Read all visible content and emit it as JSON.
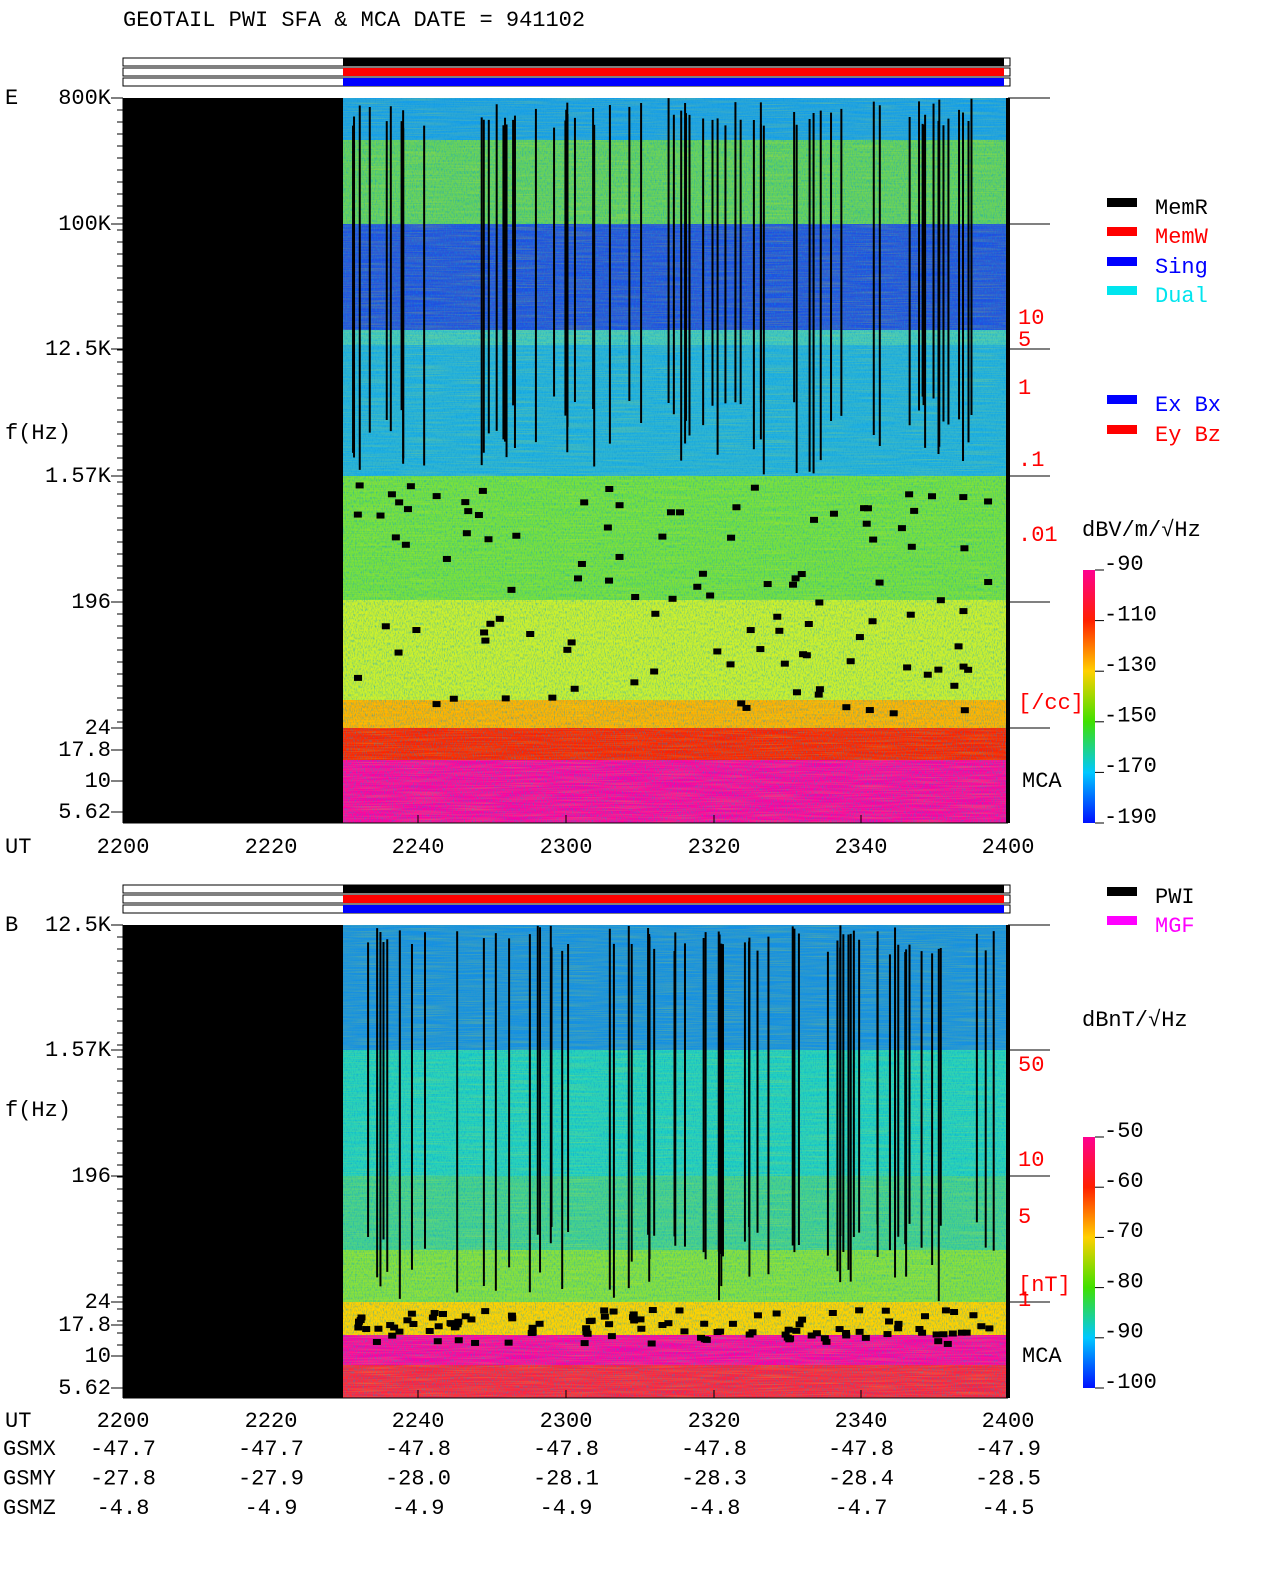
{
  "title": "GEOTAIL  PWI SFA & MCA   DATE = 941102",
  "panels": [
    {
      "label": "E",
      "y_axis_label": "f(Hz)",
      "yticks": [
        "800K",
        "100K",
        "12.5K",
        "1.57K",
        "196",
        "24",
        "17.8",
        "10",
        "5.62"
      ],
      "x_axis_label": "UT",
      "xticks": [
        "2200",
        "2220",
        "2240",
        "2300",
        "2320",
        "2340",
        "2400"
      ],
      "right_labels": [
        "10",
        "5",
        "1",
        ".1",
        ".01",
        "[/cc]"
      ],
      "mca": "MCA",
      "colorbar": {
        "title": "dBV/m/√Hz",
        "ticks": [
          "-90",
          "-110",
          "-130",
          "-150",
          "-170",
          "-190"
        ]
      },
      "legends": [
        {
          "items": [
            {
              "name": "MemR",
              "color": "#000000"
            },
            {
              "name": "MemW",
              "color": "#ff0000"
            },
            {
              "name": "Sing",
              "color": "#0000ff"
            },
            {
              "name": "Dual",
              "color": "#00e5ee"
            }
          ]
        },
        {
          "items": [
            {
              "name": "Ex Bx",
              "color": "#0000ff"
            },
            {
              "name": "Ey Bz",
              "color": "#ff0000"
            }
          ]
        }
      ]
    },
    {
      "label": "B",
      "y_axis_label": "f(Hz)",
      "yticks": [
        "12.5K",
        "1.57K",
        "196",
        "24",
        "17.8",
        "10",
        "5.62"
      ],
      "x_axis_label": "UT",
      "xticks": [
        "2200",
        "2220",
        "2240",
        "2300",
        "2320",
        "2340",
        "2400"
      ],
      "right_labels": [
        "50",
        "10",
        "5",
        "1",
        "[nT]"
      ],
      "mca": "MCA",
      "colorbar": {
        "title": "dBnT/√Hz",
        "ticks": [
          "-50",
          "-60",
          "-70",
          "-80",
          "-90",
          "-100"
        ]
      },
      "legends": [
        {
          "items": [
            {
              "name": "PWI",
              "color": "#000000"
            },
            {
              "name": "MGF",
              "color": "#ff00ff"
            }
          ]
        }
      ]
    }
  ],
  "orbit": [
    {
      "label": "GSMX",
      "values": [
        "-47.7",
        "-47.7",
        "-47.8",
        "-47.8",
        "-47.8",
        "-47.8",
        "-47.9"
      ]
    },
    {
      "label": "GSMY",
      "values": [
        "-27.8",
        "-27.9",
        "-28.0",
        "-28.1",
        "-28.3",
        "-28.4",
        "-28.5"
      ]
    },
    {
      "label": "GSMZ",
      "values": [
        "-4.8",
        "-4.9",
        "-4.9",
        "-4.9",
        "-4.8",
        "-4.7",
        "-4.5"
      ]
    }
  ]
}
